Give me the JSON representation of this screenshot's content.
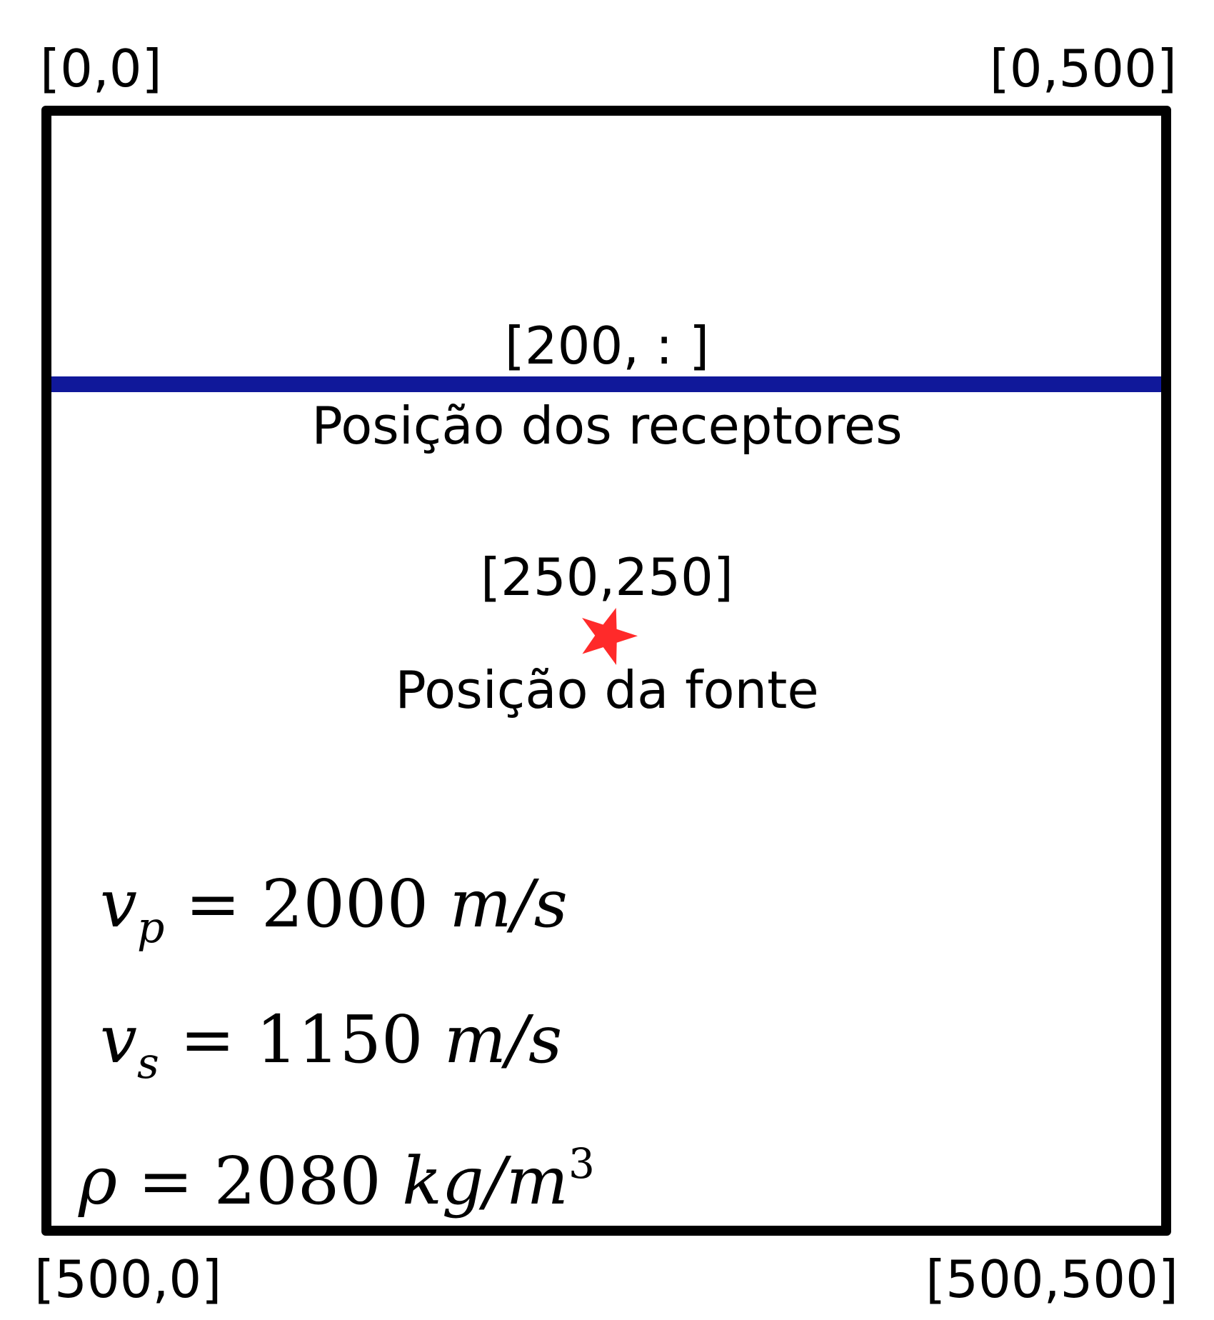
{
  "corners": {
    "top_left": "[0,0]",
    "top_right": "[0,500]",
    "bottom_left": "[500,0]",
    "bottom_right": "[500,500]"
  },
  "receivers": {
    "index": "[200, : ]",
    "label": "Posição dos receptores",
    "color": "#10189a"
  },
  "source": {
    "index": "[250,250]",
    "label": "Posição da fonte",
    "color": "#ff2a2a"
  },
  "properties": {
    "vp": {
      "symbol": "v",
      "sub": "p",
      "eq": "= 2000",
      "unit": "m/s"
    },
    "vs": {
      "symbol": "v",
      "sub": "s",
      "eq": "= 1150",
      "unit": "m/s"
    },
    "rho": {
      "symbol": "ρ",
      "eq": "= 2080",
      "unit": "kg/m",
      "unit_exp": "3"
    }
  }
}
